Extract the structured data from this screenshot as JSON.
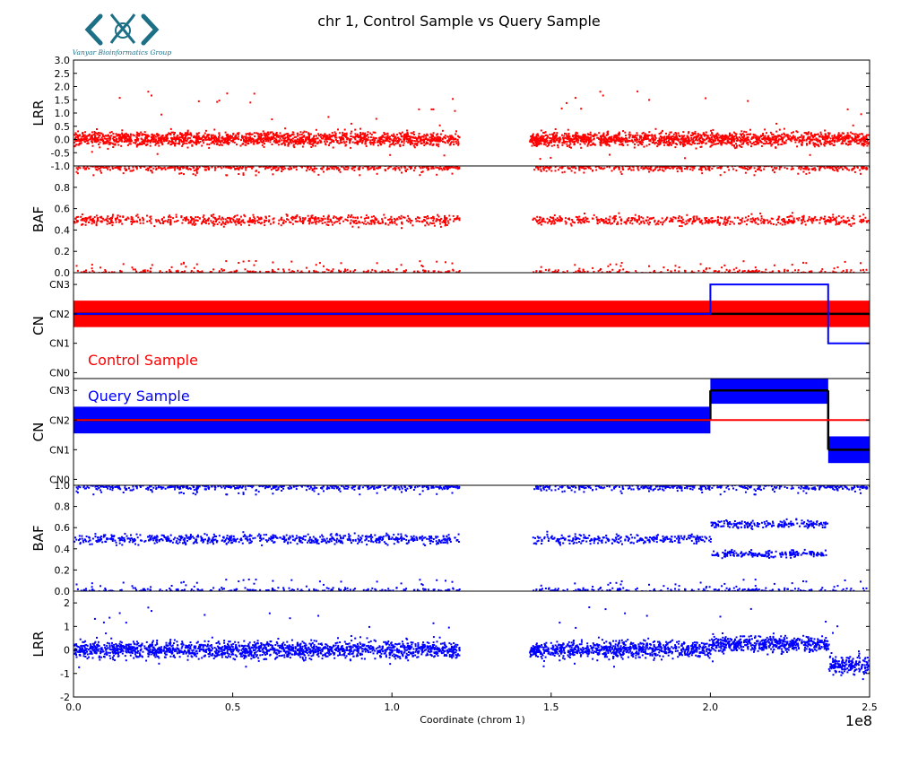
{
  "logo": {
    "text": "Vanyar Bioinformatics Group",
    "color": "#1d6f86"
  },
  "colors": {
    "control": "#ff0000",
    "query": "#0000ff",
    "segment": "#000000"
  },
  "chart_data": {
    "type": "scatter",
    "title": "chr 1, Control Sample vs Query Sample",
    "xlabel": "Coordinate (chrom 1)",
    "x_offset_label": "1e8",
    "xlim": [
      0,
      2.5
    ],
    "xticks": [
      "0.0",
      "0.5",
      "1.0",
      "1.5",
      "2.0",
      "2.5"
    ],
    "grid": false,
    "centromere_gap": [
      1.21,
      1.44
    ],
    "panels": [
      {
        "id": "control-lrr",
        "ylabel": "LRR",
        "series": "control",
        "kind": "lrr",
        "ylim": [
          -1.0,
          3.0
        ],
        "yticks": [
          "-1.0",
          "-0.5",
          "0.0",
          "0.5",
          "1.0",
          "1.5",
          "2.0",
          "2.5",
          "3.0"
        ],
        "segments": [
          {
            "x": [
              0.0,
              1.21
            ],
            "y_center": 0.05,
            "y_spread": 0.22
          },
          {
            "x": [
              1.45,
              2.5
            ],
            "y_center": 0.05,
            "y_spread": 0.22
          }
        ]
      },
      {
        "id": "control-baf",
        "ylabel": "BAF",
        "series": "control",
        "kind": "baf",
        "ylim": [
          0.0,
          1.0
        ],
        "yticks": [
          "0.0",
          "0.2",
          "0.4",
          "0.6",
          "0.8"
        ],
        "bands": [
          {
            "x": [
              0.0,
              2.5
            ],
            "y": 0.0,
            "spread": 0.03
          },
          {
            "x": [
              0.0,
              2.5
            ],
            "y": 0.5,
            "spread": 0.04
          },
          {
            "x": [
              0.0,
              2.5
            ],
            "y": 1.0,
            "spread": 0.03
          }
        ]
      },
      {
        "id": "control-cn",
        "ylabel": "CN",
        "series": "control",
        "kind": "cn",
        "ylim": [
          -0.2,
          3.4
        ],
        "yticks": [
          "CN0",
          "CN1",
          "CN2",
          "CN3"
        ],
        "label": "Control Sample",
        "fill_segments": [
          {
            "x": [
              0.0,
              2.5
            ],
            "y": [
              1.55,
              2.45
            ]
          }
        ],
        "black_segments": [
          {
            "x": [
              0.0,
              2.5
            ],
            "y": 2
          }
        ],
        "overlay_step": {
          "x": [
            0.0,
            2.0,
            2.0,
            2.37,
            2.37,
            2.5
          ],
          "y": [
            2,
            2,
            3,
            3,
            1,
            1
          ]
        }
      },
      {
        "id": "query-cn",
        "ylabel": "CN",
        "series": "query",
        "kind": "cn",
        "ylim": [
          -0.2,
          3.4
        ],
        "yticks": [
          "CN0",
          "CN1",
          "CN2",
          "CN3"
        ],
        "label": "Query Sample",
        "fill_segments": [
          {
            "x": [
              0.0,
              2.0
            ],
            "y": [
              1.55,
              2.45
            ]
          },
          {
            "x": [
              2.0,
              2.37
            ],
            "y": [
              2.55,
              3.45
            ]
          },
          {
            "x": [
              2.37,
              2.5
            ],
            "y": [
              0.55,
              1.45
            ]
          }
        ],
        "black_segments": [
          {
            "x": [
              0.0,
              2.0
            ],
            "y": 2
          },
          {
            "x": [
              2.0,
              2.37
            ],
            "y": 3
          },
          {
            "x": [
              2.37,
              2.5
            ],
            "y": 1
          }
        ],
        "overlay_step": {
          "x": [
            0.0,
            2.5
          ],
          "y": [
            2,
            2
          ]
        }
      },
      {
        "id": "query-baf",
        "ylabel": "BAF",
        "series": "query",
        "kind": "baf",
        "ylim": [
          0.0,
          1.0
        ],
        "yticks": [
          "0.0",
          "0.2",
          "0.4",
          "0.6",
          "0.8",
          "1.0"
        ],
        "bands": [
          {
            "x": [
              0.0,
              2.5
            ],
            "y": 0.0,
            "spread": 0.03
          },
          {
            "x": [
              0.0,
              2.0
            ],
            "y": 0.5,
            "spread": 0.04
          },
          {
            "x": [
              2.0,
              2.37
            ],
            "y": 0.64,
            "spread": 0.03
          },
          {
            "x": [
              2.0,
              2.37
            ],
            "y": 0.36,
            "spread": 0.03
          },
          {
            "x": [
              0.0,
              2.5
            ],
            "y": 1.0,
            "spread": 0.03
          }
        ]
      },
      {
        "id": "query-lrr",
        "ylabel": "LRR",
        "series": "query",
        "kind": "lrr",
        "ylim": [
          -2.0,
          2.5
        ],
        "yticks": [
          "-2",
          "-1",
          "0",
          "1",
          "2"
        ],
        "segments": [
          {
            "x": [
              0.0,
              1.21
            ],
            "y_center": 0.05,
            "y_spread": 0.3
          },
          {
            "x": [
              1.45,
              2.0
            ],
            "y_center": 0.05,
            "y_spread": 0.3
          },
          {
            "x": [
              2.0,
              2.37
            ],
            "y_center": 0.3,
            "y_spread": 0.28
          },
          {
            "x": [
              2.37,
              2.5
            ],
            "y_center": -0.6,
            "y_spread": 0.3
          }
        ]
      }
    ]
  }
}
